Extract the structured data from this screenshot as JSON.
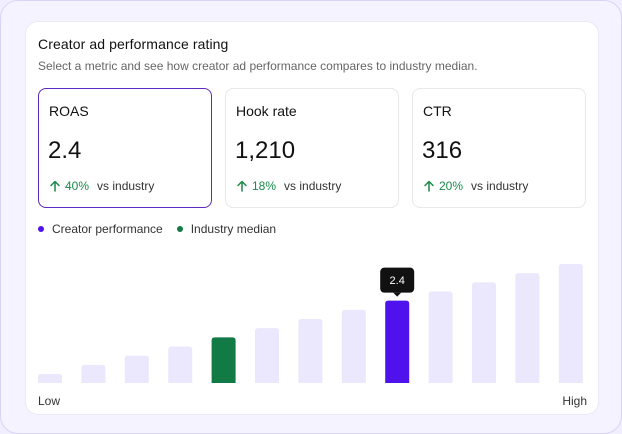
{
  "header": {
    "title": "Creator ad performance rating",
    "subtitle": "Select a metric and see how creator ad performance compares to industry median."
  },
  "metrics": [
    {
      "label": "ROAS",
      "value": "2.4",
      "delta": "40%",
      "vs": "vs industry",
      "selected": true
    },
    {
      "label": "Hook rate",
      "value": "1,210",
      "delta": "18%",
      "vs": "vs industry",
      "selected": false
    },
    {
      "label": "CTR",
      "value": "316",
      "delta": "20%",
      "vs": "vs industry",
      "selected": false
    }
  ],
  "legend": {
    "creator": "Creator performance",
    "industry": "Industry median"
  },
  "colors": {
    "creator": "#4f12ec",
    "industry": "#127a44",
    "bar": "#ebe7fc",
    "positive": "#1a8a4a",
    "selected_border": "#5b2bc4"
  },
  "chart": {
    "levels": [
      1,
      2,
      3,
      4,
      5,
      6,
      7,
      8,
      9,
      10,
      11,
      12,
      13
    ],
    "industry_index": 4,
    "creator_index": 8,
    "tooltip": "2.4",
    "axis_low": "Low",
    "axis_high": "High"
  }
}
